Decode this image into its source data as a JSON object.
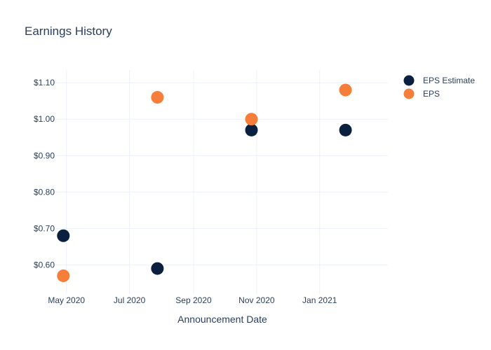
{
  "chart_data": {
    "type": "scatter",
    "title": "Earnings History",
    "xlabel": "Announcement Date",
    "ylabel": "",
    "x_tick_labels": [
      "May 2020",
      "Jul 2020",
      "Sep 2020",
      "Nov 2020",
      "Jan 2021"
    ],
    "x_ticks": [
      "2020-05-01",
      "2020-07-01",
      "2020-09-01",
      "2020-11-01",
      "2021-01-01"
    ],
    "xlim": [
      "2020-04-21",
      "2021-03-08"
    ],
    "y_tick_labels": [
      "$0.60",
      "$0.70",
      "$0.80",
      "$0.90",
      "$1.00",
      "$1.10"
    ],
    "y_ticks": [
      0.6,
      0.7,
      0.8,
      0.9,
      1.0,
      1.1
    ],
    "ylim": [
      0.52,
      1.135
    ],
    "grid": true,
    "legend_position": "top-right",
    "series": [
      {
        "name": "EPS Estimate",
        "color": "#0b1f3f",
        "points": [
          {
            "x": "2020-04-28",
            "y": 0.68
          },
          {
            "x": "2020-07-28",
            "y": 0.59
          },
          {
            "x": "2020-10-27",
            "y": 0.97
          },
          {
            "x": "2021-01-26",
            "y": 0.97
          }
        ]
      },
      {
        "name": "EPS",
        "color": "#f47e3a",
        "points": [
          {
            "x": "2020-04-28",
            "y": 0.57
          },
          {
            "x": "2020-07-28",
            "y": 1.06
          },
          {
            "x": "2020-10-27",
            "y": 1.0
          },
          {
            "x": "2021-01-26",
            "y": 1.08
          }
        ]
      }
    ]
  }
}
